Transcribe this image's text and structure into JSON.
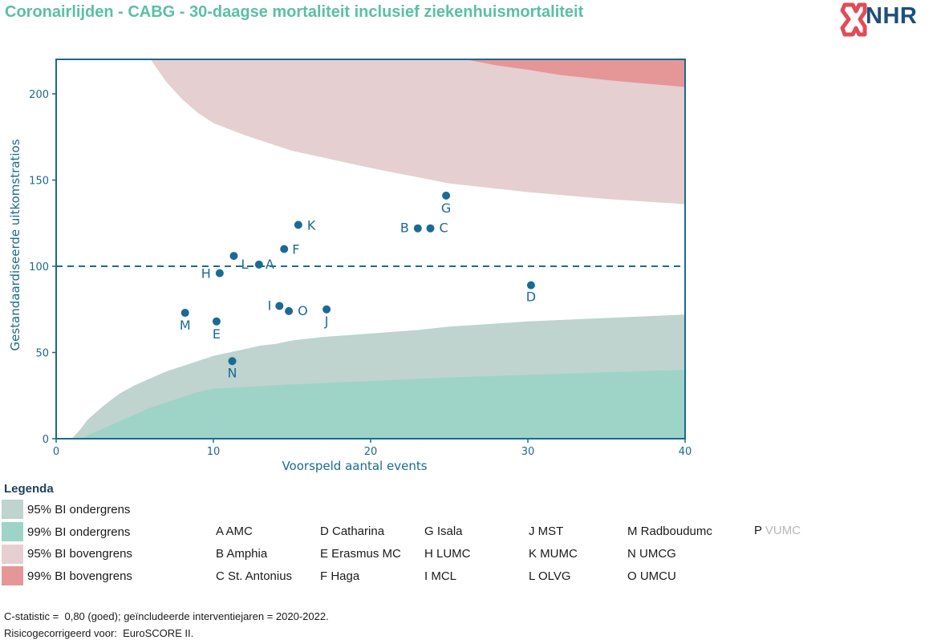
{
  "title": "Coronairlijden - CABG - 30-daagse mortaliteit inclusief ziekenhuismortaliteit",
  "logo_text": "NHR",
  "colors": {
    "title": "#5bbfa6",
    "axis": "#1c6a8c",
    "points": "#1b6a95",
    "ci95_lower": "#bfd3cf",
    "ci99_lower": "#9ed4c7",
    "ci95_upper": "#e6cfd0",
    "ci99_upper": "#e59697",
    "logo": "#1c4f7c",
    "logo_mark": "#e24b56"
  },
  "chart_data": {
    "type": "scatter",
    "xlabel": "Voorspeld aantal events",
    "ylabel": "Gestandaardiseerde uitkomstratios",
    "xlim": [
      0,
      40
    ],
    "ylim": [
      0,
      220
    ],
    "xticks": [
      0,
      10,
      20,
      30,
      40
    ],
    "yticks": [
      0,
      50,
      100,
      150,
      200
    ],
    "reference_line": 100,
    "points": [
      {
        "label": "A",
        "x": 12.9,
        "y": 101
      },
      {
        "label": "B",
        "x": 23.0,
        "y": 122
      },
      {
        "label": "C",
        "x": 23.8,
        "y": 122
      },
      {
        "label": "D",
        "x": 30.2,
        "y": 89
      },
      {
        "label": "E",
        "x": 10.2,
        "y": 68
      },
      {
        "label": "F",
        "x": 14.5,
        "y": 110
      },
      {
        "label": "G",
        "x": 24.8,
        "y": 141
      },
      {
        "label": "H",
        "x": 10.4,
        "y": 96
      },
      {
        "label": "I",
        "x": 14.2,
        "y": 77
      },
      {
        "label": "J",
        "x": 17.2,
        "y": 75
      },
      {
        "label": "K",
        "x": 15.4,
        "y": 124
      },
      {
        "label": "L",
        "x": 11.3,
        "y": 106
      },
      {
        "label": "M",
        "x": 8.2,
        "y": 73
      },
      {
        "label": "N",
        "x": 11.2,
        "y": 45
      },
      {
        "label": "O",
        "x": 14.8,
        "y": 74
      }
    ],
    "bands": {
      "ci99_lower": {
        "x": [
          1.6,
          2,
          3,
          4,
          5,
          6,
          7,
          8,
          9,
          10,
          11,
          12,
          15,
          20,
          25,
          30,
          35,
          40
        ],
        "y": [
          0,
          2,
          6,
          10,
          14,
          18,
          21,
          24,
          27,
          29,
          29.5,
          30,
          31.5,
          33.5,
          35.5,
          37,
          38.5,
          40
        ]
      },
      "ci95_lower": {
        "x": [
          1.0,
          1.5,
          2,
          3,
          4,
          5,
          6,
          7,
          8,
          9,
          10,
          11,
          12,
          13,
          14,
          15,
          17,
          20,
          23,
          25,
          30,
          35,
          40
        ],
        "y": [
          0,
          5,
          11,
          19,
          26,
          31,
          35,
          39,
          42,
          45,
          48,
          50,
          52,
          54,
          55,
          57,
          59,
          61,
          63,
          65,
          68,
          70,
          72
        ]
      },
      "ci95_upper": {
        "x": [
          6.0,
          7,
          8,
          9,
          10,
          12,
          15,
          20,
          25,
          30,
          35,
          40
        ],
        "y": [
          220,
          207,
          197,
          189,
          183,
          176,
          167,
          157,
          148,
          143,
          139,
          136
        ]
      },
      "ci99_upper": {
        "x": [
          26.0,
          28,
          30,
          32,
          35,
          38,
          40
        ],
        "y": [
          220,
          216.5,
          214,
          211,
          208,
          205.5,
          204
        ]
      }
    }
  },
  "legend": {
    "title": "Legenda",
    "bands": [
      {
        "label": "95% BI ondergrens",
        "color": "#bfd3cf"
      },
      {
        "label": "99% BI ondergrens",
        "color": "#9ed4c7"
      },
      {
        "label": "95% BI bovengrens",
        "color": "#e6cfd0"
      },
      {
        "label": "99% BI bovengrens",
        "color": "#e59697"
      }
    ],
    "hospitals": [
      [
        "A AMC",
        "B Amphia",
        "C St. Antonius"
      ],
      [
        "D Catharina",
        "E Erasmus MC",
        "F Haga"
      ],
      [
        "G Isala",
        "H LUMC",
        "I MCL"
      ],
      [
        "J MST",
        "K MUMC",
        "L OLVG"
      ],
      [
        "M Radboudumc",
        "N UMCG",
        "O UMCU"
      ]
    ],
    "extra_hospital": {
      "letter": "P",
      "name": "VUMC"
    }
  },
  "footer": {
    "line1": "C-statistic =  0,80 (goed); geïncludeerde interventiejaren = 2020-2022.",
    "line2": "Risicogecorrigeerd voor:  EuroSCORE II."
  }
}
